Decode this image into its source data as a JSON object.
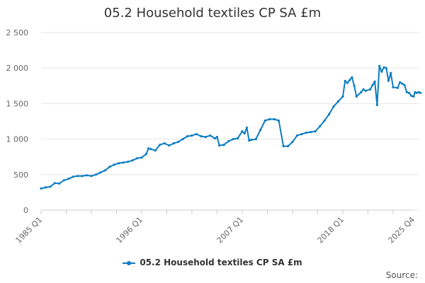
{
  "colors": {
    "series": "#0b7dc0",
    "grid": "#e6e6e6",
    "axis_text": "#666666"
  },
  "source_label": "Source:",
  "chart_data": {
    "type": "line",
    "title": "05.2 Household textiles CP SA £m",
    "xlabel": "",
    "ylabel": "",
    "ylim": [
      0,
      2500
    ],
    "y_ticks": [
      0,
      500,
      1000,
      1500,
      2000,
      2500
    ],
    "y_tick_labels": [
      "0",
      "500",
      "1 000",
      "1 500",
      "2 000",
      "2 500"
    ],
    "x_range": [
      1985.0,
      2025.75
    ],
    "x_ticks": [
      1985.0,
      1996.0,
      2007.0,
      2018.0,
      2025.75
    ],
    "x_tick_labels": [
      "1985 Q1",
      "1996 Q1",
      "2007 Q1",
      "2018 Q1",
      "2025 Q4"
    ],
    "grid": true,
    "legend": "bottom-center",
    "series": [
      {
        "name": "05.2 Household textiles CP SA £m",
        "points": [
          [
            1985.0,
            305
          ],
          [
            1985.5,
            320
          ],
          [
            1986.0,
            330
          ],
          [
            1986.5,
            380
          ],
          [
            1987.0,
            375
          ],
          [
            1987.5,
            420
          ],
          [
            1988.0,
            440
          ],
          [
            1988.5,
            470
          ],
          [
            1989.0,
            480
          ],
          [
            1989.5,
            480
          ],
          [
            1990.0,
            490
          ],
          [
            1990.5,
            480
          ],
          [
            1991.0,
            500
          ],
          [
            1991.5,
            530
          ],
          [
            1992.0,
            560
          ],
          [
            1992.5,
            610
          ],
          [
            1993.0,
            640
          ],
          [
            1993.5,
            660
          ],
          [
            1994.0,
            670
          ],
          [
            1994.5,
            680
          ],
          [
            1995.0,
            700
          ],
          [
            1995.5,
            730
          ],
          [
            1996.0,
            740
          ],
          [
            1996.5,
            790
          ],
          [
            1996.75,
            870
          ],
          [
            1997.0,
            860
          ],
          [
            1997.5,
            840
          ],
          [
            1998.0,
            920
          ],
          [
            1998.5,
            940
          ],
          [
            1999.0,
            910
          ],
          [
            1999.5,
            940
          ],
          [
            2000.0,
            960
          ],
          [
            2000.5,
            1000
          ],
          [
            2001.0,
            1040
          ],
          [
            2001.5,
            1050
          ],
          [
            2002.0,
            1070
          ],
          [
            2002.5,
            1040
          ],
          [
            2003.0,
            1030
          ],
          [
            2003.5,
            1050
          ],
          [
            2004.0,
            1010
          ],
          [
            2004.25,
            1030
          ],
          [
            2004.5,
            910
          ],
          [
            2005.0,
            920
          ],
          [
            2005.5,
            970
          ],
          [
            2006.0,
            1000
          ],
          [
            2006.5,
            1010
          ],
          [
            2007.0,
            1110
          ],
          [
            2007.25,
            1080
          ],
          [
            2007.5,
            1160
          ],
          [
            2007.75,
            980
          ],
          [
            2008.0,
            990
          ],
          [
            2008.5,
            1000
          ],
          [
            2009.0,
            1130
          ],
          [
            2009.5,
            1260
          ],
          [
            2010.0,
            1280
          ],
          [
            2010.5,
            1280
          ],
          [
            2011.0,
            1260
          ],
          [
            2011.5,
            900
          ],
          [
            2012.0,
            900
          ],
          [
            2012.5,
            960
          ],
          [
            2013.0,
            1050
          ],
          [
            2013.5,
            1070
          ],
          [
            2014.0,
            1090
          ],
          [
            2014.5,
            1100
          ],
          [
            2015.0,
            1110
          ],
          [
            2015.5,
            1180
          ],
          [
            2016.0,
            1260
          ],
          [
            2016.5,
            1350
          ],
          [
            2017.0,
            1460
          ],
          [
            2017.5,
            1530
          ],
          [
            2018.0,
            1600
          ],
          [
            2018.25,
            1820
          ],
          [
            2018.5,
            1790
          ],
          [
            2018.75,
            1830
          ],
          [
            2019.0,
            1870
          ],
          [
            2019.25,
            1750
          ],
          [
            2019.5,
            1600
          ],
          [
            2020.0,
            1660
          ],
          [
            2020.25,
            1700
          ],
          [
            2020.5,
            1680
          ],
          [
            2021.0,
            1700
          ],
          [
            2021.25,
            1760
          ],
          [
            2021.5,
            1810
          ],
          [
            2021.75,
            1480
          ],
          [
            2022.0,
            2030
          ],
          [
            2022.25,
            1950
          ],
          [
            2022.5,
            2010
          ],
          [
            2022.75,
            2000
          ],
          [
            2023.0,
            1820
          ],
          [
            2023.25,
            1930
          ],
          [
            2023.5,
            1730
          ],
          [
            2024.0,
            1720
          ],
          [
            2024.25,
            1800
          ],
          [
            2024.5,
            1780
          ],
          [
            2024.75,
            1760
          ],
          [
            2025.0,
            1660
          ],
          [
            2025.25,
            1650
          ],
          [
            2025.5,
            1610
          ],
          [
            2025.75,
            1600
          ],
          [
            2025.9,
            1660
          ],
          [
            2026.1,
            1650
          ],
          [
            2026.3,
            1660
          ],
          [
            2026.5,
            1650
          ]
        ]
      }
    ]
  }
}
